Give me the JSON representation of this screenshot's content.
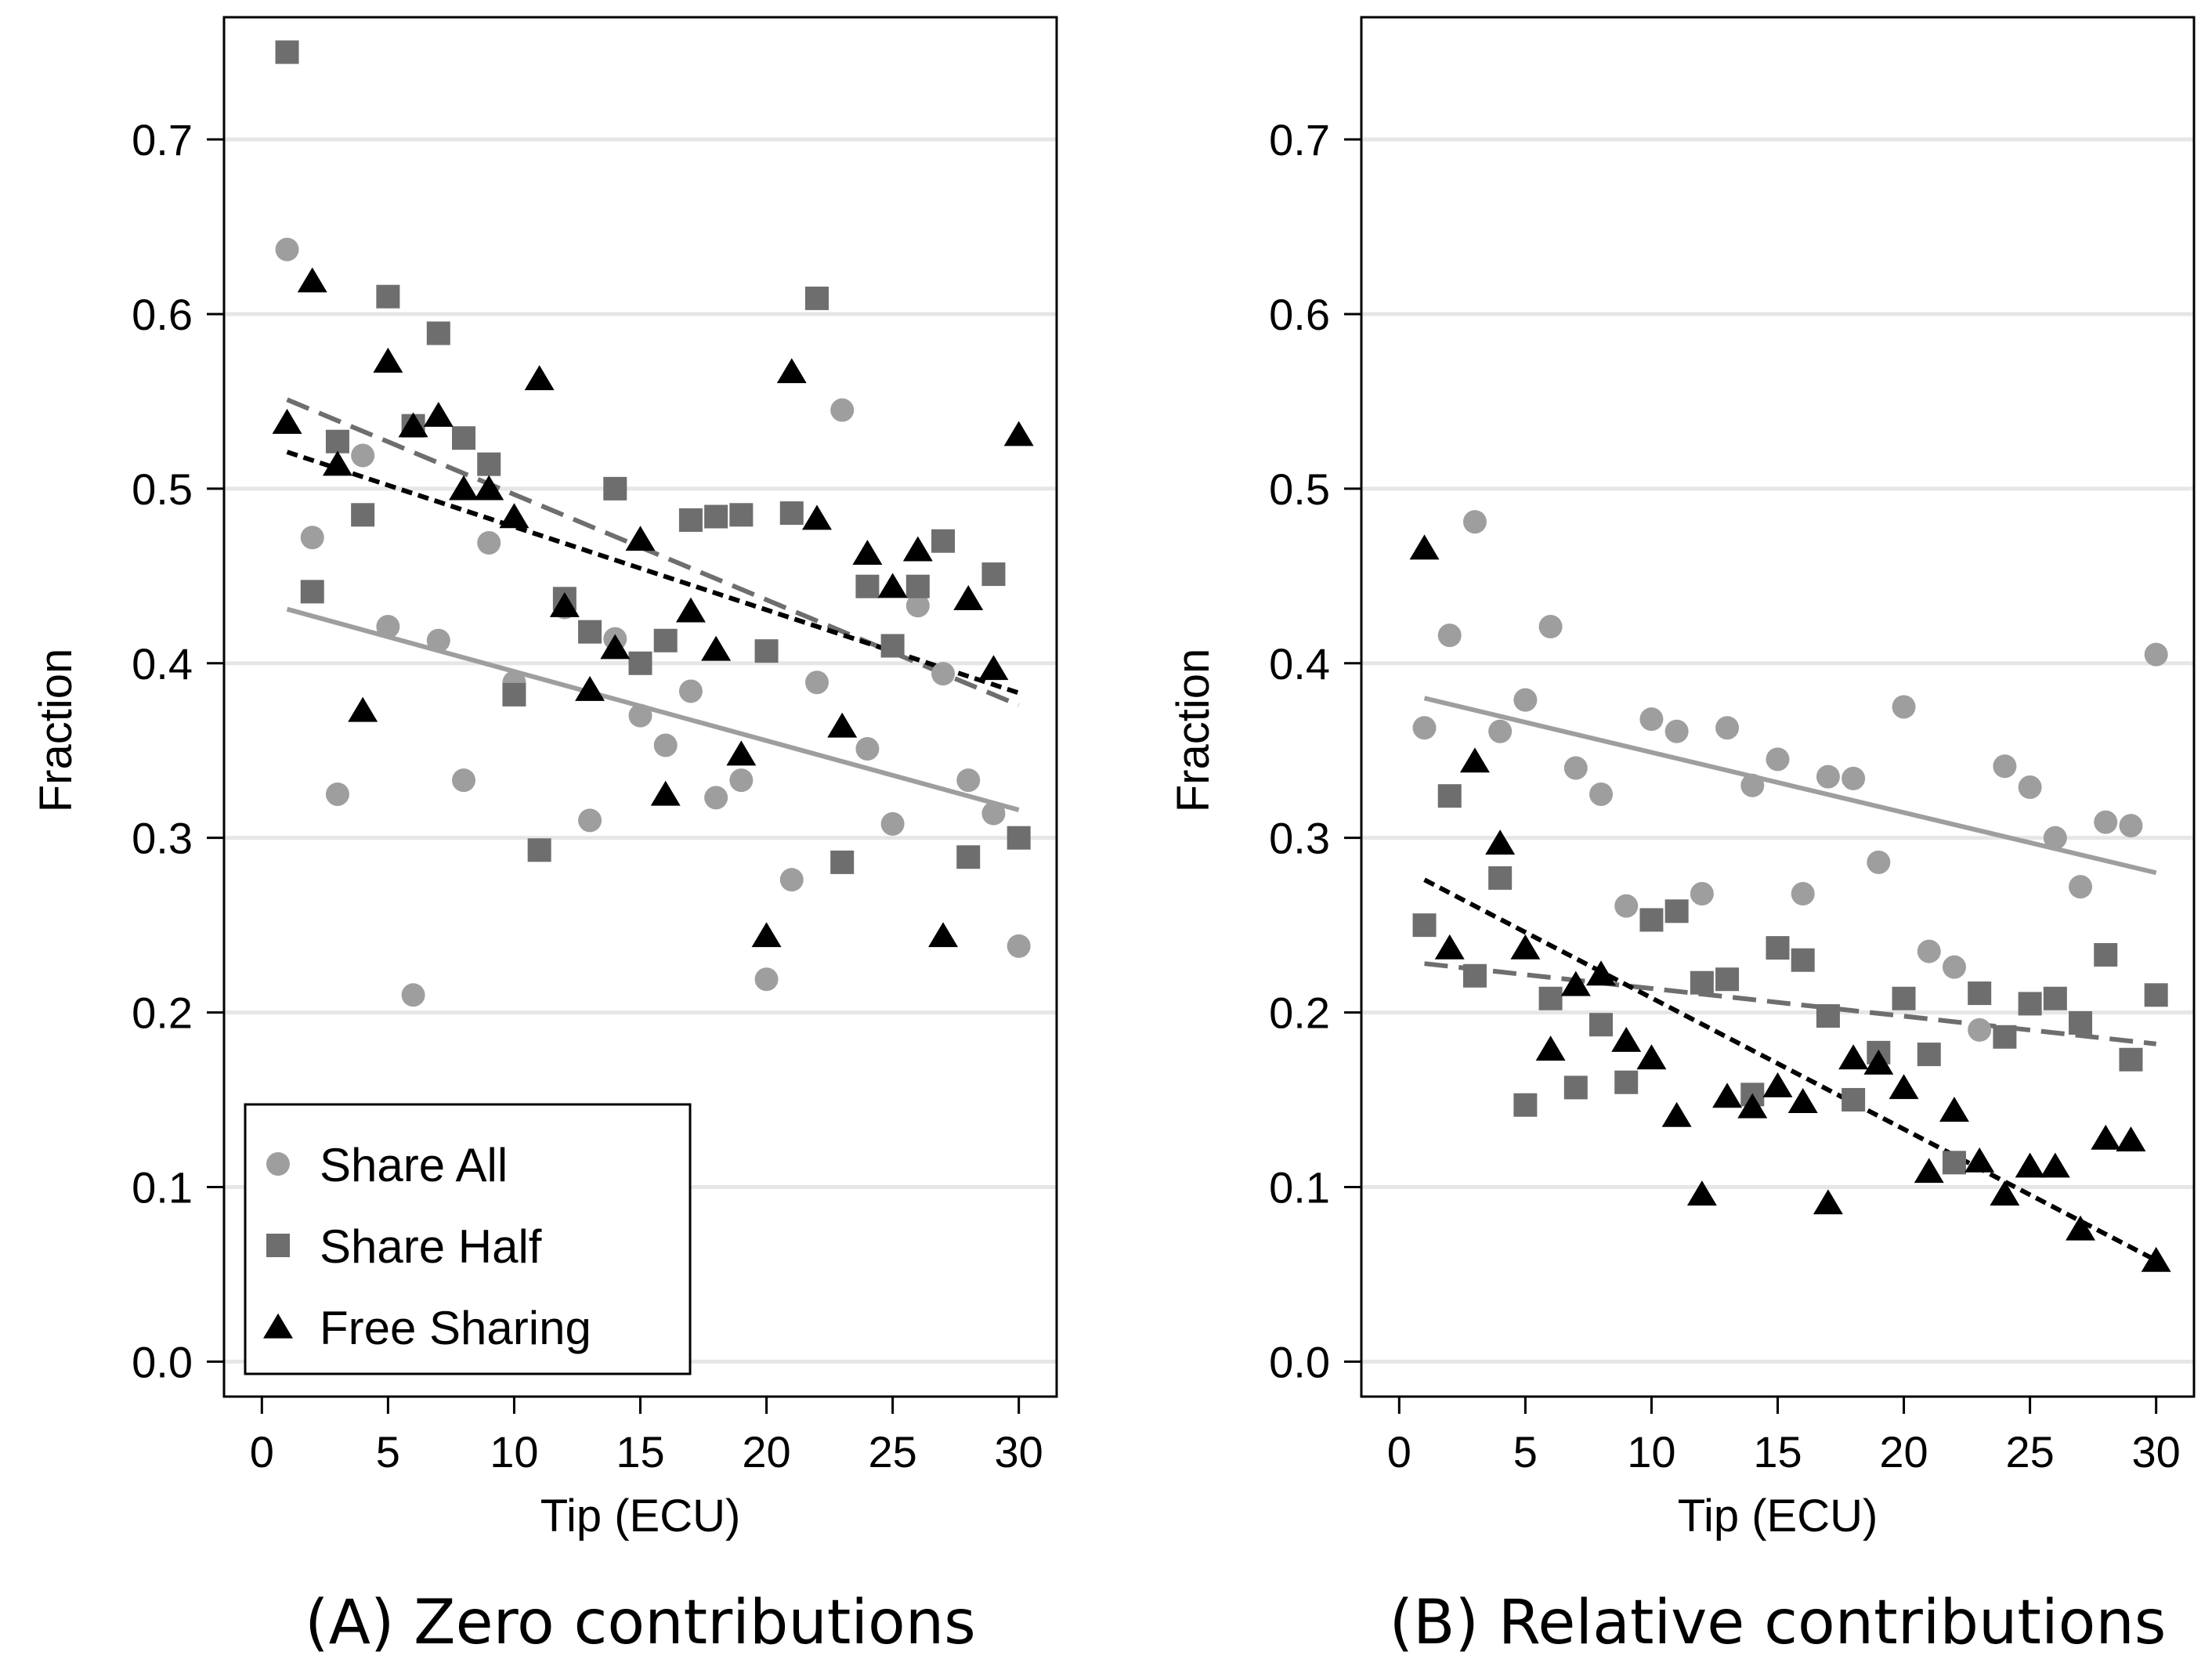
{
  "chart_data": [
    {
      "type": "scatter",
      "title": "",
      "caption": "(A) Zero contributions",
      "xlabel": "Tip (ECU)",
      "ylabel": "Fraction",
      "xlim": [
        -1.5,
        31.5
      ],
      "ylim": [
        -0.02,
        0.77
      ],
      "xticks": [
        0,
        5,
        10,
        15,
        20,
        25,
        30
      ],
      "yticks": [
        0.0,
        0.1,
        0.2,
        0.3,
        0.4,
        0.5,
        0.6,
        0.7
      ],
      "ytick_labels": [
        "0.0",
        "0.1",
        "0.2",
        "0.3",
        "0.4",
        "0.5",
        "0.6",
        "0.7"
      ],
      "grid": "horizontal",
      "legend": {
        "placement": "bottom-left",
        "entries": [
          "Share All",
          "Share Half",
          "Free Sharing"
        ]
      },
      "series": [
        {
          "name": "Share All",
          "marker": "circle",
          "color": "#9e9e9e",
          "x": [
            1,
            2,
            3,
            4,
            5,
            6,
            7,
            8,
            9,
            10,
            11,
            12,
            13,
            14,
            15,
            16,
            17,
            18,
            19,
            20,
            21,
            22,
            23,
            24,
            25,
            26,
            27,
            28,
            29,
            30
          ],
          "y": [
            0.637,
            0.472,
            0.325,
            0.519,
            0.421,
            0.21,
            0.413,
            0.333,
            0.469,
            0.389,
            0.293,
            0.432,
            0.31,
            0.414,
            0.37,
            0.353,
            0.384,
            0.323,
            0.333,
            0.219,
            0.276,
            0.389,
            0.545,
            0.351,
            0.308,
            0.433,
            0.394,
            0.333,
            0.314,
            0.238
          ],
          "fit": {
            "x": [
              1,
              30
            ],
            "y": [
              0.431,
              0.316
            ]
          }
        },
        {
          "name": "Share Half",
          "marker": "square",
          "color": "#6e6e6e",
          "x": [
            1,
            2,
            3,
            4,
            5,
            6,
            7,
            8,
            9,
            10,
            11,
            12,
            13,
            14,
            15,
            16,
            17,
            18,
            19,
            20,
            21,
            22,
            23,
            24,
            25,
            26,
            27,
            28,
            29,
            30
          ],
          "y": [
            0.75,
            0.441,
            0.527,
            0.485,
            0.61,
            0.536,
            0.589,
            0.529,
            0.514,
            0.382,
            0.293,
            0.437,
            0.418,
            0.5,
            0.4,
            0.413,
            0.482,
            0.484,
            0.485,
            0.407,
            0.486,
            0.609,
            0.286,
            0.444,
            0.41,
            0.444,
            0.47,
            0.289,
            0.451,
            0.3
          ],
          "fit": {
            "x": [
              1,
              30
            ],
            "y": [
              0.551,
              0.376
            ]
          }
        },
        {
          "name": "Free Sharing",
          "marker": "triangle",
          "color": "#000000",
          "x": [
            1,
            2,
            3,
            4,
            5,
            6,
            7,
            8,
            9,
            10,
            11,
            12,
            13,
            14,
            15,
            16,
            17,
            18,
            19,
            20,
            21,
            22,
            23,
            24,
            25,
            26,
            27,
            28,
            29,
            30
          ],
          "y": [
            0.538,
            0.619,
            0.514,
            0.373,
            0.573,
            0.536,
            0.542,
            0.5,
            0.5,
            0.484,
            0.563,
            0.433,
            0.385,
            0.409,
            0.471,
            0.325,
            0.43,
            0.408,
            0.348,
            0.244,
            0.567,
            0.483,
            0.364,
            0.463,
            0.444,
            0.465,
            0.244,
            0.437,
            0.397,
            0.531
          ],
          "fit": {
            "x": [
              1,
              30
            ],
            "y": [
              0.521,
              0.383
            ]
          }
        }
      ]
    },
    {
      "type": "scatter",
      "title": "",
      "caption": "(B) Relative contributions",
      "xlabel": "Tip (ECU)",
      "ylabel": "Fraction",
      "xlim": [
        -1.5,
        31.5
      ],
      "ylim": [
        -0.02,
        0.77
      ],
      "xticks": [
        0,
        5,
        10,
        15,
        20,
        25,
        30
      ],
      "yticks": [
        0.0,
        0.1,
        0.2,
        0.3,
        0.4,
        0.5,
        0.6,
        0.7
      ],
      "ytick_labels": [
        "0.0",
        "0.1",
        "0.2",
        "0.3",
        "0.4",
        "0.5",
        "0.6",
        "0.7"
      ],
      "grid": "horizontal",
      "series": [
        {
          "name": "Share All",
          "marker": "circle",
          "color": "#9e9e9e",
          "x": [
            1,
            2,
            3,
            4,
            5,
            6,
            7,
            8,
            9,
            10,
            11,
            12,
            13,
            14,
            15,
            16,
            17,
            18,
            19,
            20,
            21,
            22,
            23,
            24,
            25,
            26,
            27,
            28,
            29,
            30
          ],
          "y": [
            0.363,
            0.416,
            0.481,
            0.361,
            0.379,
            0.421,
            0.34,
            0.325,
            0.261,
            0.368,
            0.361,
            0.268,
            0.363,
            0.33,
            0.345,
            0.268,
            0.335,
            0.334,
            0.286,
            0.375,
            0.235,
            0.226,
            0.19,
            0.341,
            0.329,
            0.3,
            0.272,
            0.309,
            0.307,
            0.405
          ],
          "fit": {
            "x": [
              1,
              30
            ],
            "y": [
              0.38,
              0.28
            ]
          }
        },
        {
          "name": "Share Half",
          "marker": "square",
          "color": "#6e6e6e",
          "x": [
            1,
            2,
            3,
            4,
            5,
            6,
            7,
            8,
            9,
            10,
            11,
            12,
            13,
            14,
            15,
            16,
            17,
            18,
            19,
            20,
            21,
            22,
            23,
            24,
            25,
            26,
            27,
            28,
            29,
            30
          ],
          "y": [
            0.25,
            0.324,
            0.221,
            0.277,
            0.147,
            0.208,
            0.157,
            0.193,
            0.16,
            0.253,
            0.258,
            0.217,
            0.219,
            0.153,
            0.237,
            0.23,
            0.198,
            0.15,
            0.177,
            0.208,
            0.176,
            0.114,
            0.211,
            0.186,
            0.205,
            0.208,
            0.194,
            0.233,
            0.173,
            0.21
          ],
          "fit": {
            "x": [
              1,
              30
            ],
            "y": [
              0.228,
              0.182
            ]
          }
        },
        {
          "name": "Free Sharing",
          "marker": "triangle",
          "color": "#000000",
          "x": [
            1,
            2,
            3,
            4,
            5,
            6,
            7,
            8,
            9,
            10,
            11,
            12,
            13,
            14,
            15,
            16,
            17,
            18,
            19,
            20,
            21,
            22,
            23,
            24,
            25,
            26,
            27,
            28,
            29,
            30
          ],
          "y": [
            0.466,
            0.237,
            0.344,
            0.297,
            0.237,
            0.179,
            0.216,
            0.222,
            0.184,
            0.174,
            0.141,
            0.096,
            0.152,
            0.146,
            0.158,
            0.149,
            0.091,
            0.174,
            0.171,
            0.157,
            0.109,
            0.144,
            0.115,
            0.096,
            0.112,
            0.112,
            0.076,
            0.128,
            0.127,
            0.058
          ],
          "fit": {
            "x": [
              1,
              30
            ],
            "y": [
              0.276,
              0.058
            ]
          }
        }
      ]
    }
  ]
}
